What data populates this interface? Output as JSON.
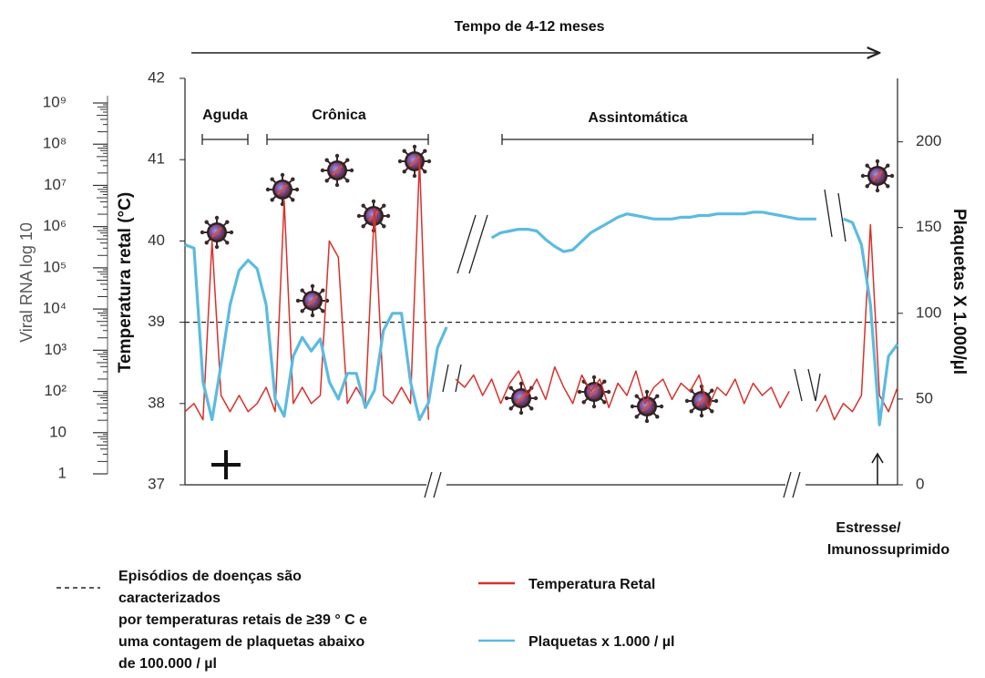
{
  "chart_data": {
    "type": "line",
    "title": "Tempo de 4-12 meses",
    "ylabel": "Temperatura retal (°C)",
    "y2label": "Plaquetas X 1.000/µl",
    "categories": [
      null,
      null,
      null,
      null,
      null,
      null,
      null,
      null,
      null,
      null,
      null,
      null,
      null,
      null,
      null,
      null,
      null,
      null,
      null,
      null,
      null,
      null,
      null,
      null,
      null,
      null,
      null,
      null,
      null,
      null,
      null,
      null,
      null,
      null,
      null,
      null,
      null,
      null,
      null,
      null,
      null,
      null,
      null,
      null,
      null,
      null,
      null,
      null,
      null,
      null,
      null,
      null,
      null,
      null,
      null,
      null,
      null,
      null,
      null,
      null,
      null,
      null,
      null,
      null,
      null,
      null,
      null,
      null,
      null,
      null,
      null,
      null,
      null,
      null,
      null,
      null,
      null,
      null,
      null,
      null
    ],
    "series": [
      {
        "name": "Temperatura Retal",
        "color": "#d9302b",
        "values": [
          37.9,
          38.0,
          37.8,
          40.0,
          38.1,
          37.9,
          38.1,
          37.9,
          38.0,
          38.2,
          37.9,
          40.5,
          38.0,
          38.2,
          38.0,
          38.1,
          40.0,
          39.8,
          38.0,
          38.2,
          38.0,
          40.4,
          38.1,
          38.0,
          38.2,
          38.0,
          41.0,
          37.8,
          null,
          null,
          38.3,
          38.2,
          38.35,
          38.1,
          38.3,
          38.0,
          38.25,
          38.4,
          38.1,
          38.3,
          38.05,
          38.45,
          38.2,
          38.0,
          38.35,
          38.15,
          38.3,
          37.95,
          38.25,
          38.1,
          38.4,
          38.0,
          38.2,
          38.3,
          38.05,
          38.25,
          38.15,
          38.35,
          37.95,
          38.2,
          38.1,
          38.3,
          38.0,
          38.25,
          38.1,
          38.2,
          37.95,
          38.15,
          null,
          null,
          37.9,
          38.1,
          37.8,
          38.0,
          37.9,
          38.1,
          40.2,
          38.1,
          37.9,
          38.2
        ]
      },
      {
        "name": "Plaquetas x 1.000 / µl",
        "color": "#5bbbe0",
        "axis": "y2",
        "values": [
          140,
          138,
          60,
          38,
          70,
          105,
          125,
          131,
          126,
          105,
          50,
          40,
          75,
          86,
          78,
          85,
          60,
          50,
          65,
          65,
          45,
          55,
          90,
          100,
          100,
          60,
          38,
          48,
          80,
          92,
          null,
          null,
          null,
          null,
          144,
          147,
          148,
          149,
          149,
          148,
          143,
          139,
          136,
          137,
          142,
          147,
          150,
          153,
          156,
          158,
          157,
          156,
          155,
          155,
          155,
          156,
          156,
          157,
          157,
          158,
          158,
          158,
          158,
          159,
          159,
          158,
          157,
          156,
          155,
          155,
          155,
          null,
          null,
          155,
          153,
          140,
          105,
          35,
          75,
          82
        ]
      }
    ],
    "ylim": [
      37,
      42
    ],
    "yticks": [
      37,
      38,
      39,
      40,
      41,
      42
    ],
    "y2lim": [
      0,
      237
    ],
    "y2ticks": [
      0,
      50,
      100,
      150,
      200
    ],
    "threshold": 39,
    "viral_axis": {
      "label": "Viral RNA log 10",
      "log": true,
      "lim": [
        1,
        1000000000
      ],
      "ticks": [
        1,
        10,
        {
          "value": 100,
          "label": "10²"
        },
        {
          "value": 1000,
          "label": "10³"
        },
        {
          "value": 10000,
          "label": "10⁴"
        },
        {
          "value": 100000,
          "label": "10⁵"
        },
        {
          "value": 1000000,
          "label": "10⁶"
        },
        {
          "value": 10000000,
          "label": "10⁷"
        },
        {
          "value": 100000000,
          "label": "10⁸"
        },
        {
          "value": 1000000000,
          "label": "10⁹"
        }
      ]
    },
    "phases": [
      "Aguda",
      "Crônica",
      "Assintomática"
    ],
    "annotations": [
      "Estresse/",
      "Imunossuprimido"
    ],
    "note": [
      "Episódios de doenças são",
      "caracterizados",
      "por temperaturas retais de ≥39 ° C e",
      "uma contagem de plaquetas abaixo",
      "de 100.000 / µl"
    ]
  }
}
